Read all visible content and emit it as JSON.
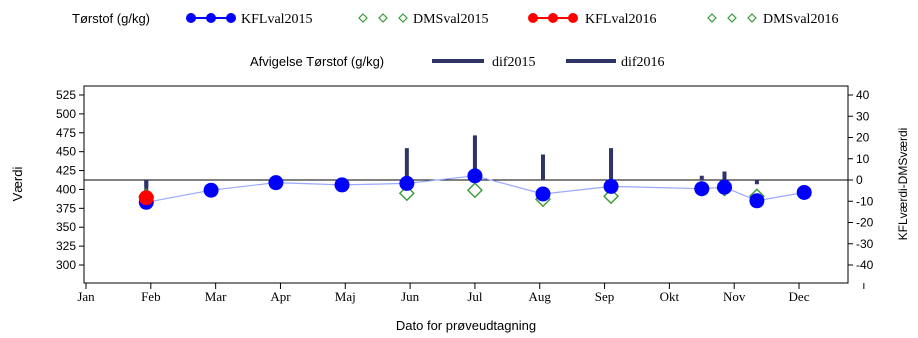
{
  "chart_data": {
    "type": "line",
    "legend": {
      "row1_title": "Tørstof (g/kg)",
      "row2_title": "Afvigelse Tørstof (g/kg)",
      "placement": "top"
    },
    "xlabel": "Dato for prøveudtagning",
    "ylabel_left": "Værdi",
    "ylabel_right": "KFLværdi-DMSværdi",
    "x_ticks": [
      "Jan",
      "Feb",
      "Mar",
      "Apr",
      "Maj",
      "Jun",
      "Jul",
      "Aug",
      "Sep",
      "Okt",
      "Nov",
      "Dec"
    ],
    "xlim": [
      0,
      12
    ],
    "ylim_left": [
      300,
      525
    ],
    "yticks_left": [
      300,
      325,
      350,
      375,
      400,
      425,
      450,
      475,
      500,
      525
    ],
    "ylim_right": [
      -40,
      40
    ],
    "yticks_right": [
      40,
      30,
      20,
      10,
      0,
      -10,
      -20,
      -30,
      -40
    ],
    "reference_line_diff": 0,
    "colors": {
      "KFLval2015": "#0000ff",
      "DMSval2015": "#3a9a3a",
      "KFLval2016": "#ff0000",
      "DMSval2016": "#3a9a3a",
      "dif": "#2e3566",
      "connector": "#9aa8ff"
    },
    "series": [
      {
        "name": "KFLval2015",
        "kind": "line-marker",
        "x": [
          0.93,
          1.93,
          2.93,
          3.95,
          4.95,
          6.0,
          7.05,
          8.1,
          9.5,
          9.85,
          10.35,
          11.08
        ],
        "y": [
          383,
          399,
          409,
          406,
          408,
          418,
          394,
          404,
          401,
          403,
          385,
          396
        ]
      },
      {
        "name": "DMSval2015",
        "kind": "diamond",
        "x": [
          4.95,
          6.0,
          7.05,
          8.1,
          9.5,
          9.85,
          10.35
        ],
        "y": [
          395,
          399,
          387,
          391,
          401,
          401,
          391
        ]
      },
      {
        "name": "KFLval2016",
        "kind": "marker",
        "x": [
          0.93
        ],
        "y": [
          389
        ]
      },
      {
        "name": "DMSval2016",
        "kind": "diamond",
        "x": [
          0.93
        ],
        "y": [
          391
        ]
      },
      {
        "name": "dif2015",
        "kind": "needle",
        "x": [
          0.93,
          4.95,
          6.0,
          7.05,
          8.1,
          9.5,
          9.85,
          10.35
        ],
        "y": [
          -8,
          15,
          21,
          12,
          15,
          2,
          4,
          -2
        ]
      },
      {
        "name": "dif2016",
        "kind": "needle",
        "x": [
          0.93
        ],
        "y": [
          -3
        ]
      }
    ]
  }
}
